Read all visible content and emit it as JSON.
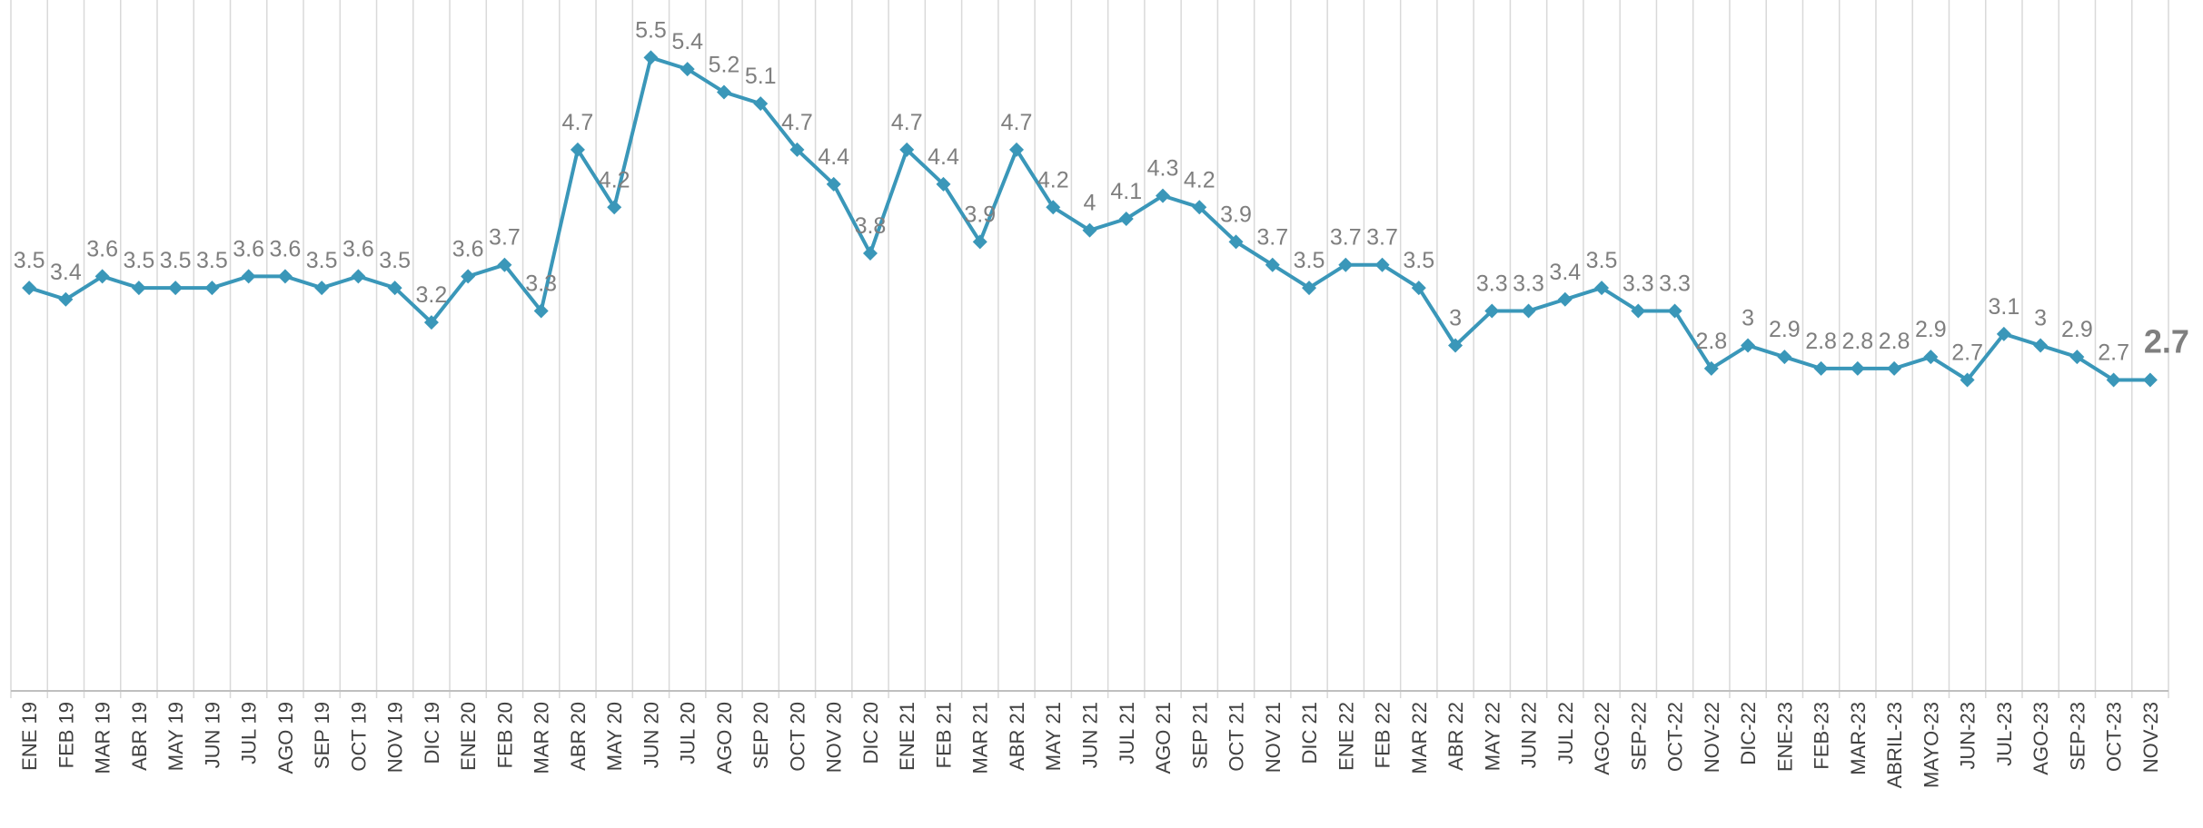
{
  "chart_data": {
    "type": "line",
    "categories": [
      "ENE 19",
      "FEB 19",
      "MAR 19",
      "ABR 19",
      "MAY 19",
      "JUN 19",
      "JUL 19",
      "AGO 19",
      "SEP 19",
      "OCT 19",
      "NOV 19",
      "DIC 19",
      "ENE 20",
      "FEB 20",
      "MAR 20",
      "ABR 20",
      "MAY 20",
      "JUN 20",
      "JUL 20",
      "AGO 20",
      "SEP 20",
      "OCT 20",
      "NOV 20",
      "DIC 20",
      "ENE 21",
      "FEB 21",
      "MAR 21",
      "ABR 21",
      "MAY 21",
      "JUN 21",
      "JUL 21",
      "AGO 21",
      "SEP 21",
      "OCT 21",
      "NOV 21",
      "DIC 21",
      "ENE 22",
      "FEB 22",
      "MAR 22",
      "ABR 22",
      "MAY 22",
      "JUN 22",
      "JUL 22",
      "AGO-22",
      "SEP-22",
      "OCT-22",
      "NOV-22",
      "DIC-22",
      "ENE-23",
      "FEB-23",
      "MAR-23",
      "ABRIL-23",
      "MAYO-23",
      "JUN-23",
      "JUL-23",
      "AGO-23",
      "SEP-23",
      "OCT-23",
      "NOV-23"
    ],
    "values": [
      3.5,
      3.4,
      3.6,
      3.5,
      3.5,
      3.5,
      3.6,
      3.6,
      3.5,
      3.6,
      3.5,
      3.2,
      3.6,
      3.7,
      3.3,
      4.7,
      4.2,
      5.5,
      5.4,
      5.2,
      5.1,
      4.7,
      4.4,
      3.8,
      4.7,
      4.4,
      3.9,
      4.7,
      4.2,
      4,
      4.1,
      4.3,
      4.2,
      3.9,
      3.7,
      3.5,
      3.7,
      3.7,
      3.5,
      3,
      3.3,
      3.3,
      3.4,
      3.5,
      3.3,
      3.3,
      2.8,
      3,
      2.9,
      2.8,
      2.8,
      2.8,
      2.9,
      2.7,
      3.1,
      3,
      2.9,
      2.7,
      2.7
    ],
    "color": "#3a97b9",
    "ylim": [
      0,
      6
    ],
    "grid": true
  }
}
